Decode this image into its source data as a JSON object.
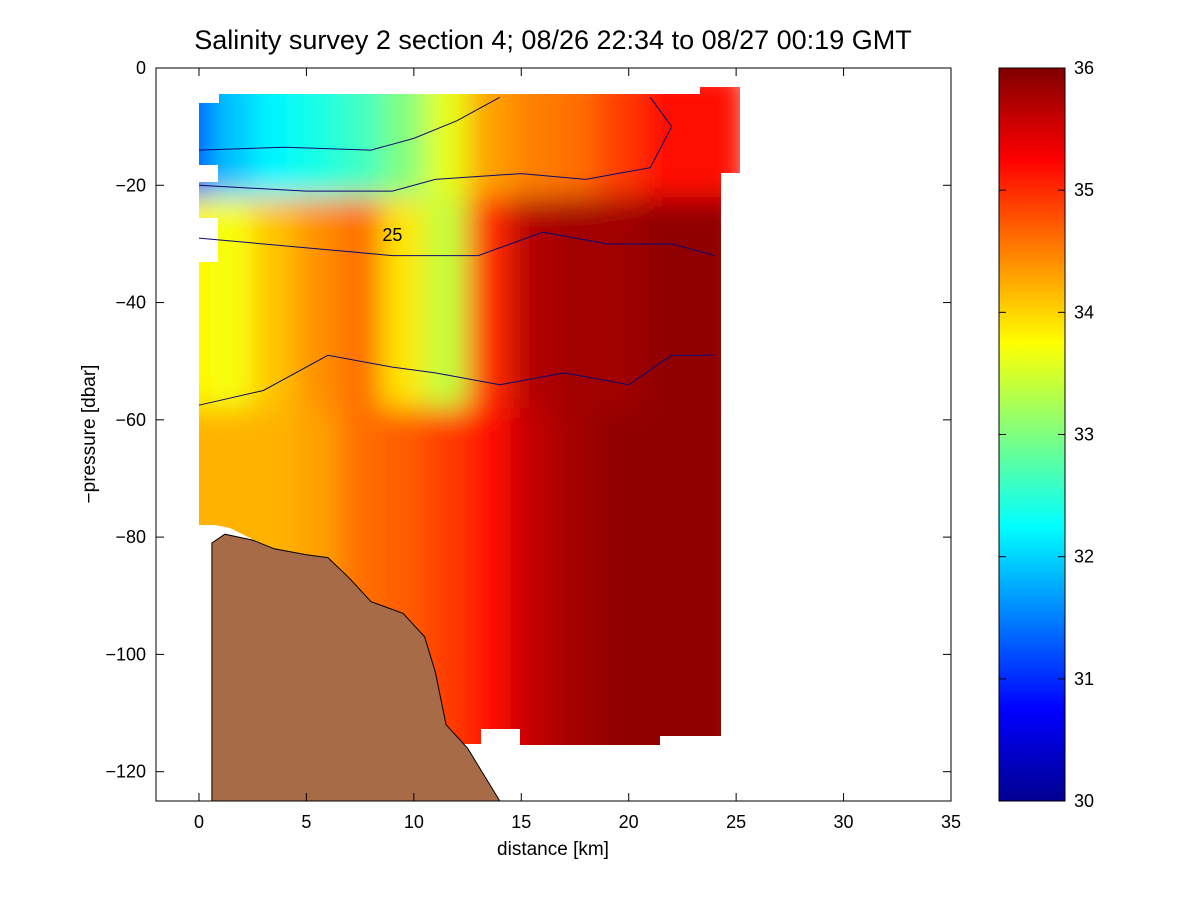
{
  "chart_data": {
    "type": "heatmap",
    "title": "Salinity survey 2 section 4; 08/26 22:34 to 08/27 00:19 GMT",
    "xlabel": "distance [km]",
    "ylabel": "−pressure [dbar]",
    "xlim": [
      -2,
      35
    ],
    "ylim": [
      -125,
      0
    ],
    "x_ticks": [
      0,
      5,
      10,
      15,
      20,
      25,
      30,
      35
    ],
    "x_tick_labels": [
      "0",
      "5",
      "10",
      "15",
      "20",
      "25",
      "30",
      "35"
    ],
    "y_ticks": [
      0,
      -20,
      -40,
      -60,
      -80,
      -100,
      -120
    ],
    "y_tick_labels": [
      "0",
      "−20",
      "−40",
      "−60",
      "−80",
      "−100",
      "−120"
    ],
    "colorbar": {
      "range": [
        30,
        36
      ],
      "ticks": [
        30,
        31,
        32,
        33,
        34,
        35,
        36
      ],
      "tick_labels": [
        "30",
        "31",
        "32",
        "33",
        "34",
        "35",
        "36"
      ],
      "colormap": "jet"
    },
    "grid": false,
    "contour_label": "25",
    "contour_label_pos": {
      "x": 9.0,
      "y": -29.5
    },
    "bottom_color": "#a86b47",
    "contour_color": "#0a0a70",
    "salinity_columns": {
      "x": [
        0,
        2,
        4,
        6,
        8,
        10,
        12,
        14,
        16,
        18,
        20,
        22,
        24
      ],
      "upper_layer_at_y_-10": [
        31.2,
        31.9,
        32.2,
        32.4,
        32.6,
        33.0,
        33.6,
        34.3,
        34.5,
        34.6,
        34.9,
        35.2,
        35.2
      ],
      "mid_layer_at_y_-40": [
        33.8,
        33.7,
        34.1,
        34.4,
        34.6,
        33.9,
        33.4,
        35.0,
        35.7,
        35.8,
        35.8,
        35.9,
        35.9
      ],
      "deep_layer_at_y_-80": [
        34.2,
        34.2,
        34.2,
        34.3,
        34.6,
        34.7,
        34.9,
        35.2,
        35.6,
        35.8,
        35.9,
        35.9,
        35.9
      ]
    },
    "contours": [
      {
        "points": [
          [
            0,
            -14
          ],
          [
            4,
            -13.5
          ],
          [
            8,
            -14
          ],
          [
            10,
            -12
          ],
          [
            12,
            -9
          ],
          [
            14,
            -5
          ]
        ]
      },
      {
        "points": [
          [
            0,
            -20
          ],
          [
            5,
            -21
          ],
          [
            9,
            -21
          ],
          [
            11,
            -19
          ],
          [
            15,
            -18
          ],
          [
            18,
            -19
          ],
          [
            21,
            -17
          ],
          [
            22,
            -10
          ],
          [
            21,
            -5
          ]
        ]
      },
      {
        "points": [
          [
            0,
            -29
          ],
          [
            6,
            -31
          ],
          [
            9,
            -32
          ],
          [
            13,
            -32
          ],
          [
            16,
            -28
          ],
          [
            19,
            -30
          ],
          [
            22,
            -30
          ],
          [
            24,
            -32
          ]
        ]
      },
      {
        "points": [
          [
            0,
            -57.5
          ],
          [
            3,
            -55
          ],
          [
            6,
            -49
          ],
          [
            9,
            -51
          ],
          [
            11,
            -52
          ],
          [
            14,
            -54
          ],
          [
            17,
            -52
          ],
          [
            20,
            -54
          ],
          [
            22,
            -49
          ],
          [
            24,
            -49
          ]
        ]
      }
    ],
    "data_mask_right_edge": [
      [
        0,
        24.2
      ],
      [
        -5,
        24.2
      ],
      [
        -18,
        24.2
      ],
      [
        -114,
        24.2
      ]
    ],
    "bathymetry": [
      [
        0.6,
        -125
      ],
      [
        0.6,
        -81
      ],
      [
        1.2,
        -79.5
      ],
      [
        2.5,
        -80.5
      ],
      [
        3.5,
        -82
      ],
      [
        5,
        -83
      ],
      [
        6,
        -83.5
      ],
      [
        7,
        -87
      ],
      [
        8,
        -91
      ],
      [
        9.5,
        -93
      ],
      [
        10.5,
        -97
      ],
      [
        11,
        -103
      ],
      [
        11.5,
        -112
      ],
      [
        12,
        -114
      ],
      [
        12.5,
        -116
      ],
      [
        13,
        -119
      ],
      [
        14,
        -125
      ]
    ]
  }
}
